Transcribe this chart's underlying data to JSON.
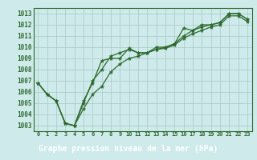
{
  "xlabel": "Graphe pression niveau de la mer (hPa)",
  "x": [
    0,
    1,
    2,
    3,
    4,
    5,
    6,
    7,
    8,
    9,
    10,
    11,
    12,
    13,
    14,
    15,
    16,
    17,
    18,
    19,
    20,
    21,
    22,
    23
  ],
  "line1": [
    1006.8,
    1005.8,
    1005.2,
    1003.2,
    1003.0,
    1005.2,
    1006.8,
    1008.8,
    1009.0,
    1009.0,
    1009.9,
    1009.5,
    1009.5,
    1010.0,
    1010.0,
    1010.3,
    1011.7,
    1011.5,
    1012.0,
    1012.0,
    1012.2,
    1013.0,
    1013.0,
    1012.5
  ],
  "line2": [
    1006.8,
    1005.8,
    1005.2,
    1003.2,
    1003.0,
    1005.0,
    1007.0,
    1008.0,
    1009.2,
    1009.5,
    1009.8,
    1009.5,
    1009.5,
    1009.8,
    1010.0,
    1010.3,
    1011.0,
    1011.5,
    1011.8,
    1012.0,
    1012.2,
    1013.0,
    1013.0,
    1012.5
  ],
  "line3": [
    1006.8,
    1005.8,
    1005.2,
    1003.2,
    1003.0,
    1004.5,
    1005.8,
    1006.5,
    1007.8,
    1008.5,
    1009.0,
    1009.2,
    1009.5,
    1009.8,
    1009.9,
    1010.2,
    1010.8,
    1011.2,
    1011.5,
    1011.8,
    1012.0,
    1012.8,
    1012.8,
    1012.3
  ],
  "ylim": [
    1002.5,
    1013.5
  ],
  "yticks": [
    1003,
    1004,
    1005,
    1006,
    1007,
    1008,
    1009,
    1010,
    1011,
    1012,
    1013
  ],
  "line_color": "#2d6a2d",
  "bg_color": "#ceeaea",
  "grid_color": "#a8c8c8",
  "xlabel_bg": "#2d6a2d",
  "xlabel_fg": "#ffffff"
}
